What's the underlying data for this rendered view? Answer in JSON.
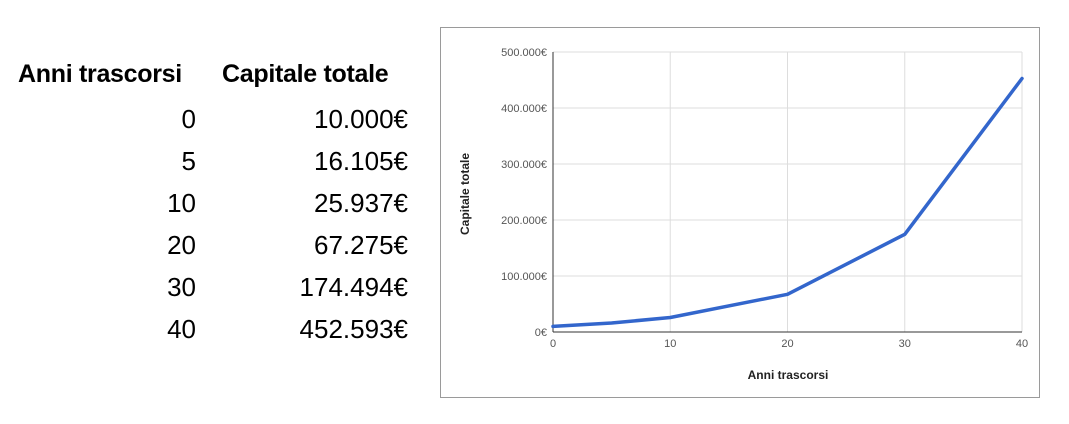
{
  "table": {
    "header_years": "Anni trascorsi",
    "header_capital": "Capitale totale",
    "rows": [
      {
        "years": "0",
        "capital": "10.000€"
      },
      {
        "years": "5",
        "capital": "16.105€"
      },
      {
        "years": "10",
        "capital": "25.937€"
      },
      {
        "years": "20",
        "capital": "67.275€"
      },
      {
        "years": "30",
        "capital": "174.494€"
      },
      {
        "years": "40",
        "capital": "452.593€"
      }
    ]
  },
  "chart_data": {
    "type": "line",
    "title": "",
    "xlabel": "Anni trascorsi",
    "ylabel": "Capitale totale",
    "x": [
      0,
      5,
      10,
      20,
      30,
      40
    ],
    "series": [
      {
        "values": [
          10000,
          16105,
          25937,
          67275,
          174494,
          452593
        ],
        "color": "#3366cc"
      }
    ],
    "xlim": [
      0,
      40
    ],
    "ylim": [
      0,
      500000
    ],
    "x_ticks": [
      0,
      10,
      20,
      30,
      40
    ],
    "x_tick_labels": [
      "0",
      "10",
      "20",
      "30",
      "40"
    ],
    "y_ticks": [
      0,
      100000,
      200000,
      300000,
      400000,
      500000
    ],
    "y_tick_labels": [
      "0€",
      "100.000€",
      "200.000€",
      "300.000€",
      "400.000€",
      "500.000€"
    ],
    "grid": true,
    "legend": "none"
  }
}
